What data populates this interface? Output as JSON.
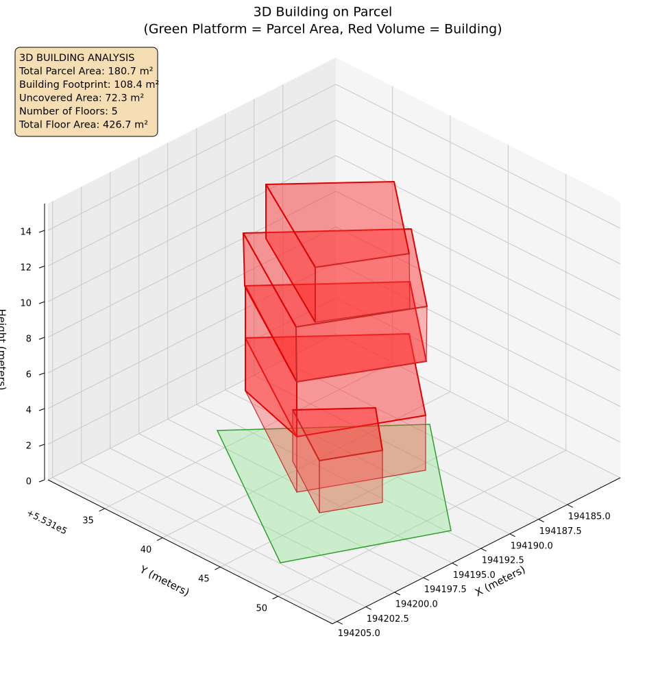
{
  "chart_data": {
    "type": "bar3d",
    "title": "3D Building on Parcel",
    "subtitle": "(Green Platform = Parcel Area, Red Volume = Building)",
    "info": [
      "3D BUILDING ANALYSIS",
      "Total Parcel Area: 180.7 m²",
      "Building Footprint: 108.4 m²",
      "Uncovered Area: 72.3 m²",
      "Number of Floors: 5",
      "Total Floor Area: 426.7 m²"
    ],
    "xlabel": "X (meters)",
    "ylabel": "Y (meters)",
    "zlabel": "Height (meters)",
    "y_offset_label": "+5.531e5",
    "xlim": [
      194180.4,
      194205.4
    ],
    "xticks": [
      {
        "value": 194185,
        "label": "194185.0"
      },
      194187.5,
      {
        "value": 194190,
        "label": "194190.0"
      },
      194192.5,
      {
        "value": 194195,
        "label": "194195.0"
      },
      194197.5,
      {
        "value": 194200,
        "label": "194200.0"
      },
      194202.5,
      {
        "value": 194205,
        "label": "194205.0"
      }
    ],
    "ylim": [
      30.1,
      54.7
    ],
    "yticks": [
      35,
      40,
      45,
      50
    ],
    "zlim": [
      0,
      15.5
    ],
    "zticks": [
      0,
      2,
      4,
      6,
      8,
      10,
      12,
      14
    ],
    "grid": true
  }
}
